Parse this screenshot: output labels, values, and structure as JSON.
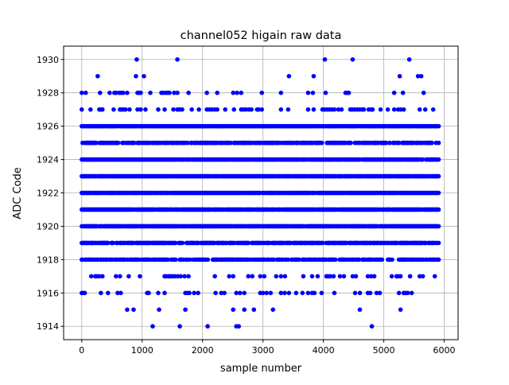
{
  "chart_data": {
    "type": "scatter",
    "title": "channel052 higain raw data",
    "xlabel": "sample number",
    "ylabel": "ADC Code",
    "xlim": [
      -300,
      6230
    ],
    "ylim": [
      1913.2,
      1930.8
    ],
    "xticks": [
      0,
      1000,
      2000,
      3000,
      4000,
      5000,
      6000
    ],
    "yticks": [
      1914,
      1916,
      1918,
      1920,
      1922,
      1924,
      1926,
      1928,
      1930
    ],
    "grid": true,
    "marker_color": "#0000ff",
    "dense_levels": [
      1918,
      1919,
      1920,
      1921,
      1922,
      1923,
      1924,
      1925,
      1926
    ],
    "dense_x_range": [
      0,
      5920
    ],
    "sparse_points": {
      "1930": [
        910,
        1583,
        4024,
        4485,
        5422
      ],
      "1929": [
        264,
        897,
        1029,
        3430,
        3839,
        5264,
        5567,
        5620
      ],
      "1928": [
        0,
        66,
        303,
        462,
        541,
        567,
        620,
        650,
        686,
        752,
        923,
        950,
        976,
        1135,
        1319,
        1350,
        1390,
        1420,
        1451,
        1530,
        1583,
        1768,
        2071,
        2243,
        2507,
        2570,
        2639,
        2981,
        3298,
        3747,
        3826,
        4037,
        4367,
        4400,
        4420,
        5172,
        5317,
        5660
      ],
      "1927": [
        0,
        145,
        290,
        320,
        343,
        528,
        633,
        660,
        690,
        726,
        792,
        923,
        976,
        1055,
        1266,
        1372,
        1517,
        1583,
        1620,
        1662,
        1821,
        1939,
        2071,
        2110,
        2150,
        2200,
        2243,
        2375,
        2520,
        2639,
        2680,
        2720,
        2770,
        2810,
        2929,
        2981,
        2902,
        3298,
        3417,
        3747,
        3839,
        3984,
        4020,
        4060,
        4100,
        4140,
        4182,
        4248,
        4301,
        4446,
        4480,
        4520,
        4560,
        4600,
        4640,
        4670,
        4749,
        4790,
        4815,
        4947,
        5066,
        5172,
        5237,
        5280,
        5330,
        5594,
        5686,
        5818
      ],
      "1917": [
        158,
        224,
        250,
        290,
        343,
        567,
        633,
        778,
        963,
        1372,
        1400,
        1440,
        1470,
        1504,
        1544,
        1590,
        1636,
        1702,
        1768,
        2203,
        2441,
        2507,
        2757,
        2823,
        2955,
        3021,
        3219,
        3298,
        3364,
        3668,
        3813,
        3905,
        4050,
        4080,
        4116,
        4169,
        4274,
        4340,
        4485,
        4538,
        4736,
        4790,
        4842,
        5132,
        5211,
        5240,
        5277,
        5435,
        5594,
        5646,
        5844
      ],
      "1916": [
        0,
        20,
        50,
        317,
        435,
        594,
        646,
        1082,
        1108,
        1266,
        1372,
        1715,
        1750,
        1781,
        1860,
        1926,
        2216,
        2309,
        2361,
        2559,
        2620,
        2691,
        2955,
        3000,
        3060,
        3127,
        3298,
        3360,
        3430,
        3549,
        3654,
        3747,
        3813,
        3852,
        3971,
        4182,
        4525,
        4604,
        4736,
        4776,
        4881,
        4934,
        5251,
        5330,
        5360,
        5396,
        5462
      ],
      "1915": [
        752,
        858,
        1280,
        1715,
        2507,
        2691,
        2850,
        3166,
        4604,
        5277
      ],
      "1914": [
        1174,
        1623,
        2084,
        2559,
        2599,
        4802
      ]
    }
  }
}
